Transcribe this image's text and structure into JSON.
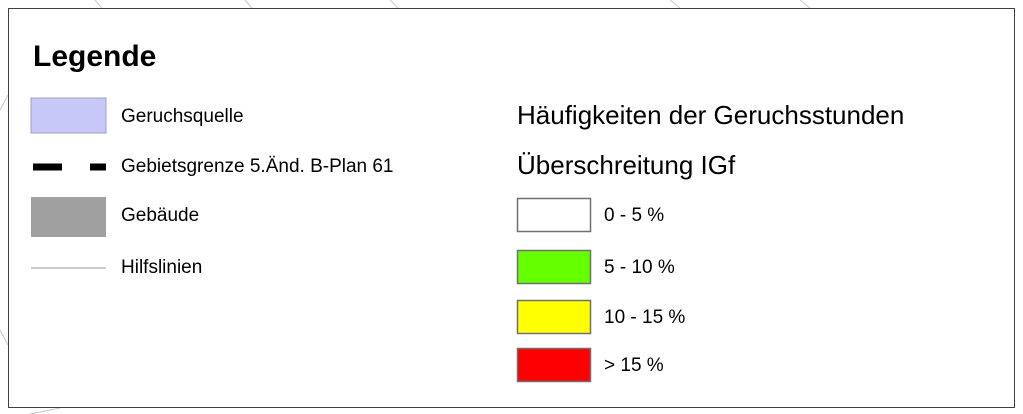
{
  "legend": {
    "title": "Legende",
    "items": [
      {
        "label": "Geruchsquelle",
        "symbol": "fill",
        "color": "#c8c8f8"
      },
      {
        "label": "Gebietsgrenze 5.Änd. B-Plan 61",
        "symbol": "dash",
        "color": "#000000"
      },
      {
        "label": "Gebäude",
        "symbol": "fill",
        "color": "#a0a0a0"
      },
      {
        "label": "Hilfslinien",
        "symbol": "line",
        "color": "#999999"
      }
    ],
    "classes_heading": [
      "Häufigkeiten der Geruchsstunden",
      "Überschreitung IGf"
    ],
    "classes": [
      {
        "label": "0 - 5 %",
        "color": "#ffffff"
      },
      {
        "label": "5 - 10 %",
        "color": "#66ff00"
      },
      {
        "label": "10 - 15 %",
        "color": "#ffff00"
      },
      {
        "label": "> 15 %",
        "color": "#ff0000"
      }
    ]
  }
}
